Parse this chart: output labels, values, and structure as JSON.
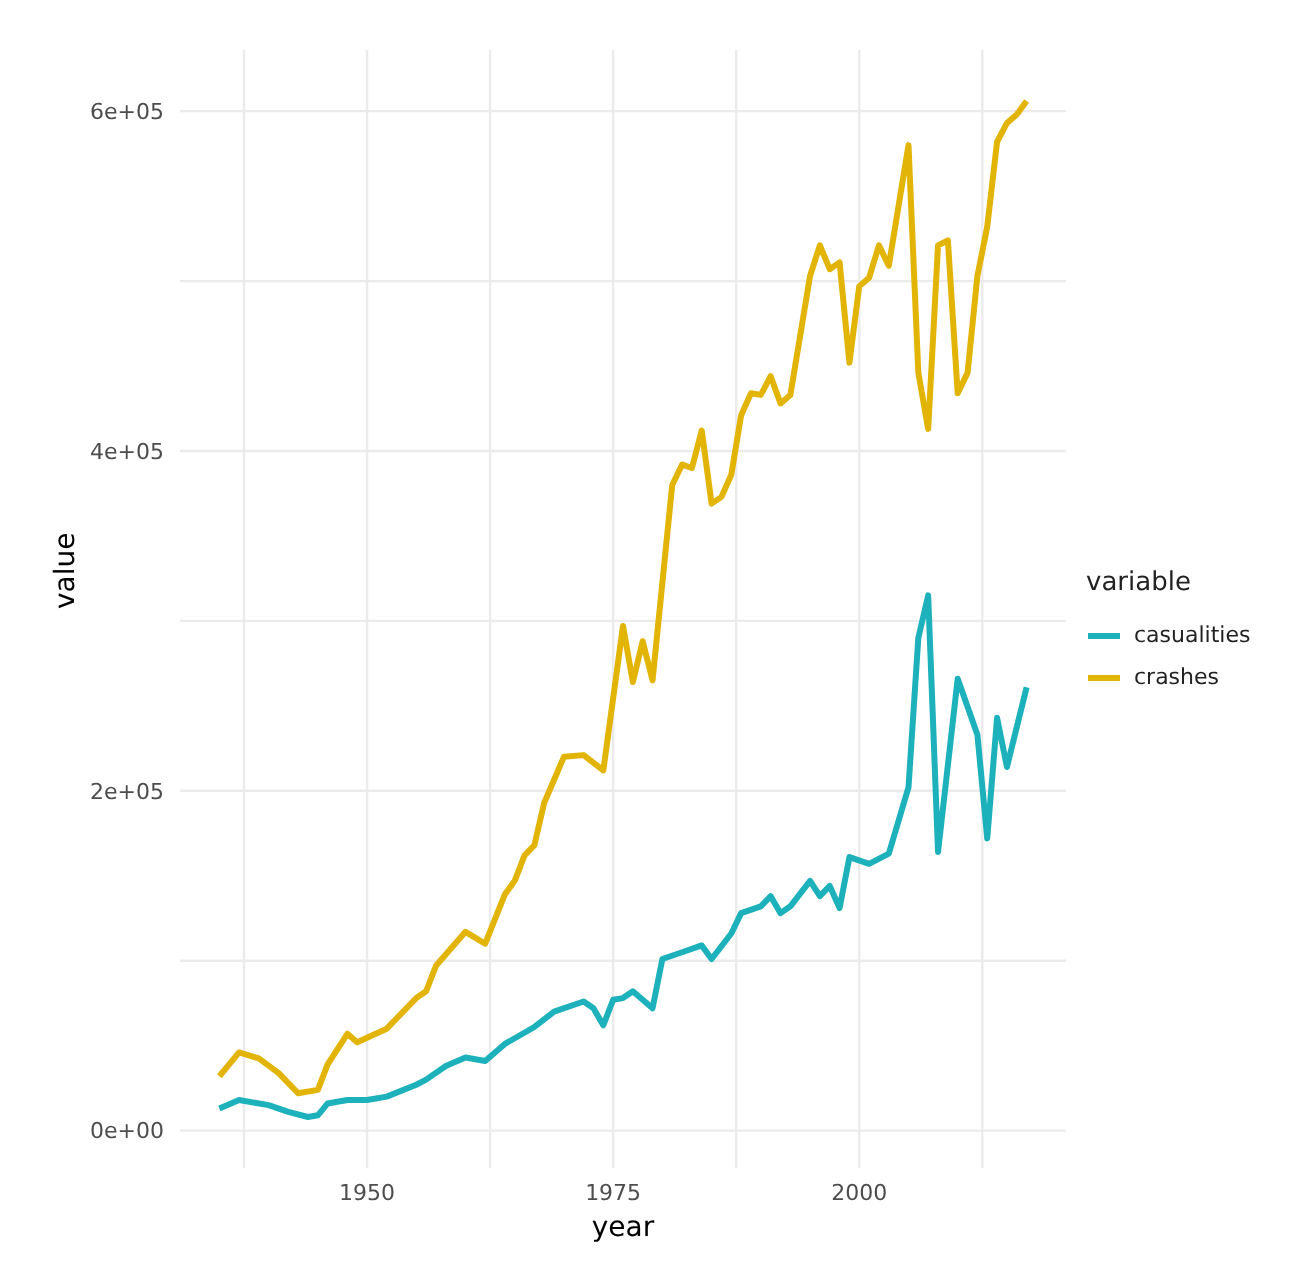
{
  "chart_data": {
    "type": "line",
    "xlabel": "year",
    "ylabel": "value",
    "legend_title": "variable",
    "legend": "right",
    "grid": true,
    "line_style": "solid",
    "marker": "none",
    "xlim": [
      1931,
      2021
    ],
    "xticks": [
      {
        "value": 1937.5,
        "label": null
      },
      1950,
      {
        "value": 1962.5,
        "label": null
      },
      1975,
      {
        "value": 1987.5,
        "label": null
      },
      2000,
      {
        "value": 2012.5,
        "label": null
      }
    ],
    "ylim": [
      -22000,
      636000
    ],
    "yticks": [
      {
        "value": 0,
        "label": "0e+00"
      },
      {
        "value": 100000,
        "label": null
      },
      {
        "value": 200000,
        "label": "2e+05"
      },
      {
        "value": 300000,
        "label": null
      },
      {
        "value": 400000,
        "label": "4e+05"
      },
      {
        "value": 500000,
        "label": null
      },
      {
        "value": 600000,
        "label": "6e+05"
      }
    ],
    "series": [
      {
        "name": "casualities",
        "color": "#1db1bc",
        "x": [
          1935,
          1937,
          1940,
          1942,
          1944,
          1945,
          1946,
          1948,
          1950,
          1952,
          1955,
          1956,
          1958,
          1960,
          1962,
          1964,
          1967,
          1969,
          1972,
          1973,
          1974,
          1975,
          1976,
          1977,
          1979,
          1980,
          1982,
          1984,
          1985,
          1987,
          1988,
          1990,
          1991,
          1992,
          1993,
          1995,
          1996,
          1997,
          1998,
          1999,
          2001,
          2003,
          2005,
          2006,
          2007,
          2008,
          2010,
          2012,
          2013,
          2014,
          2015,
          2017
        ],
        "values": [
          13000,
          18000,
          15000,
          11000,
          8000,
          9000,
          16000,
          18000,
          18000,
          20000,
          27000,
          30000,
          38000,
          43000,
          41000,
          51000,
          61000,
          70000,
          76000,
          72000,
          62000,
          77000,
          78000,
          82000,
          72000,
          101000,
          105000,
          109000,
          101000,
          116000,
          128000,
          132000,
          138000,
          128000,
          132000,
          147000,
          138000,
          144000,
          131000,
          161000,
          157000,
          163000,
          202000,
          290000,
          315000,
          164000,
          266000,
          233000,
          172000,
          243000,
          214000,
          261000
        ]
      },
      {
        "name": "crashes",
        "color": "#e2b405",
        "x": [
          1935,
          1937,
          1939,
          1941,
          1943,
          1945,
          1946,
          1948,
          1949,
          1952,
          1955,
          1956,
          1957,
          1960,
          1962,
          1964,
          1965,
          1966,
          1967,
          1968,
          1970,
          1972,
          1974,
          1976,
          1977,
          1978,
          1979,
          1981,
          1982,
          1983,
          1984,
          1985,
          1986,
          1987,
          1988,
          1989,
          1990,
          1991,
          1992,
          1993,
          1995,
          1996,
          1997,
          1998,
          1999,
          2000,
          2001,
          2002,
          2003,
          2005,
          2006,
          2007,
          2008,
          2009,
          2010,
          2011,
          2012,
          2013,
          2014,
          2015,
          2016,
          2017
        ],
        "values": [
          32000,
          46000,
          42500,
          34000,
          22000,
          24000,
          39000,
          57000,
          52000,
          60000,
          78000,
          82000,
          97000,
          117000,
          110000,
          139000,
          147000,
          162000,
          168000,
          193000,
          220000,
          221000,
          212000,
          297000,
          264000,
          288000,
          265000,
          380000,
          392000,
          390000,
          412000,
          369000,
          373000,
          386000,
          421000,
          434000,
          433000,
          444000,
          428000,
          433000,
          503000,
          521000,
          507000,
          511000,
          452000,
          497000,
          502000,
          521000,
          509000,
          580000,
          446000,
          413000,
          521000,
          524000,
          434000,
          446000,
          503000,
          532000,
          582000,
          593000,
          598000,
          606000
        ]
      }
    ]
  }
}
